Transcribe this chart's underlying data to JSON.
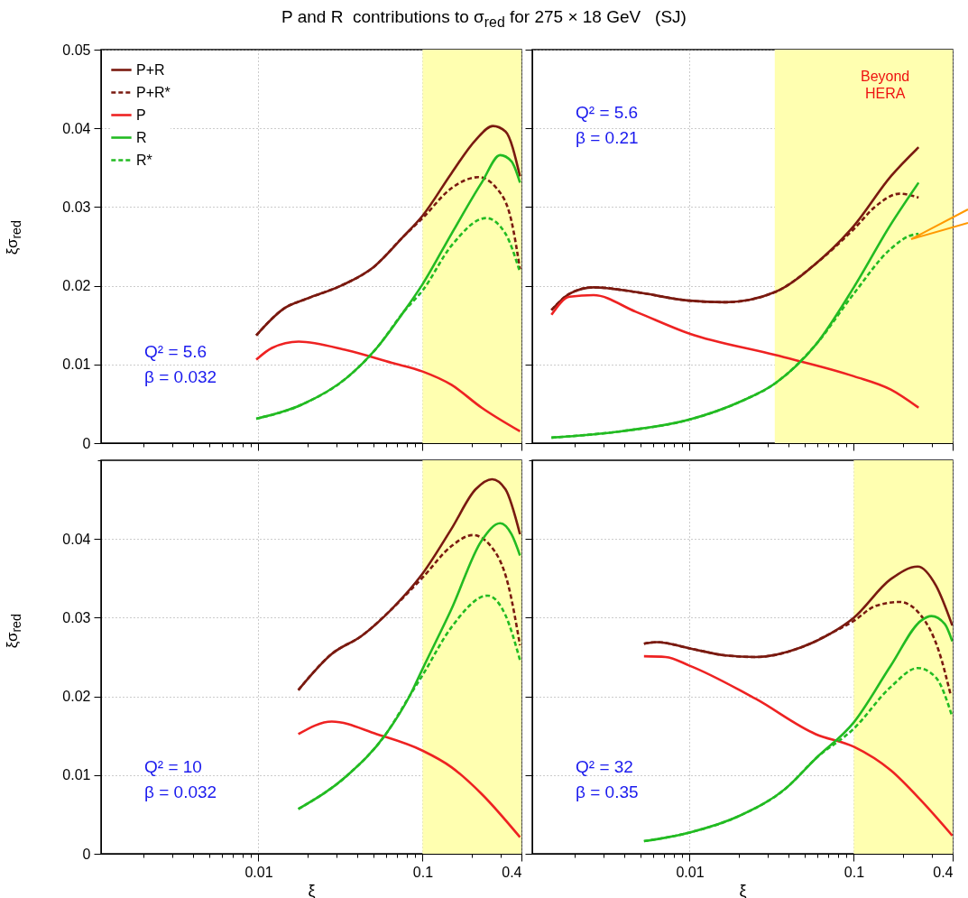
{
  "chart_data": [
    {
      "type": "line",
      "title": "P and R  contributions to σ$_{red}$ for 275 × 18 GeV   (SJ)",
      "ylabel": "ξσ$_{red}$",
      "log": "x",
      "grid": true,
      "legend": "top left",
      "tick_labels": "y",
      "xlim": [
        0.0011,
        0.4
      ],
      "ylim": [
        0,
        0.05
      ],
      "xticks": [
        {
          "value": 0.002,
          "label": null
        },
        {
          "value": 0.003,
          "label": null
        },
        {
          "value": 0.004,
          "label": null
        },
        {
          "value": 0.005,
          "label": null
        },
        {
          "value": 0.006,
          "label": null
        },
        {
          "value": 0.007,
          "label": null
        },
        {
          "value": 0.008,
          "label": null
        },
        {
          "value": 0.009,
          "label": null
        },
        0.01,
        {
          "value": 0.02,
          "label": null
        },
        {
          "value": 0.03,
          "label": null
        },
        {
          "value": 0.04,
          "label": null
        },
        {
          "value": 0.05,
          "label": null
        },
        {
          "value": 0.06,
          "label": null
        },
        {
          "value": 0.07,
          "label": null
        },
        {
          "value": 0.08,
          "label": null
        },
        {
          "value": 0.09,
          "label": null
        },
        0.1,
        {
          "value": 0.2,
          "label": null
        },
        {
          "value": 0.3,
          "label": null
        },
        0.4
      ],
      "yticks": [
        0,
        0.01,
        0.02,
        0.03,
        0.04,
        0.05
      ],
      "bands": [
        {
          "axis": "x",
          "from": 0.1,
          "to": 0.4,
          "color": "#ffffb0"
        }
      ],
      "annotations": [
        "Q² = 5.6",
        "β = 0.032"
      ],
      "series": [
        {
          "name": "P+R",
          "color": "#7a1a10",
          "line_style": "solid",
          "x": [
            0.0097,
            0.0143,
            0.02,
            0.0318,
            0.0505,
            0.0768,
            0.1,
            0.15,
            0.21,
            0.268,
            0.32,
            0.392
          ],
          "values": [
            0.0137,
            0.0171,
            0.0184,
            0.02,
            0.0224,
            0.0263,
            0.0289,
            0.0343,
            0.0385,
            0.0403,
            0.0396,
            0.0339
          ]
        },
        {
          "name": "P+R*",
          "color": "#7a1a10",
          "line_style": "dashed",
          "x": [
            0.0097,
            0.0143,
            0.02,
            0.0318,
            0.0505,
            0.0768,
            0.1,
            0.15,
            0.219,
            0.282,
            0.348,
            0.392
          ],
          "values": [
            0.0137,
            0.0171,
            0.0184,
            0.02,
            0.0224,
            0.0263,
            0.0286,
            0.0324,
            0.0338,
            0.0324,
            0.0282,
            0.0221
          ]
        },
        {
          "name": "P",
          "color": "#ee2222",
          "line_style": "solid",
          "x": [
            0.0097,
            0.0121,
            0.0176,
            0.0345,
            0.0649,
            0.1,
            0.15,
            0.229,
            0.392
          ],
          "values": [
            0.0106,
            0.0121,
            0.0129,
            0.0118,
            0.0102,
            0.0091,
            0.0074,
            0.0045,
            0.0015
          ]
        },
        {
          "name": "R",
          "color": "#22bb22",
          "line_style": "solid",
          "x": [
            0.0097,
            0.0184,
            0.0345,
            0.0526,
            0.0768,
            0.1,
            0.15,
            0.229,
            0.297,
            0.348,
            0.392
          ],
          "values": [
            0.0031,
            0.0049,
            0.0083,
            0.0121,
            0.0167,
            0.0202,
            0.0266,
            0.0331,
            0.0366,
            0.0358,
            0.0331
          ]
        },
        {
          "name": "R*",
          "color": "#22bb22",
          "line_style": "dashed",
          "x": [
            0.0097,
            0.0184,
            0.0345,
            0.0526,
            0.0768,
            0.1,
            0.15,
            0.244,
            0.32,
            0.392
          ],
          "values": [
            0.0031,
            0.0049,
            0.0083,
            0.0121,
            0.0167,
            0.0194,
            0.0251,
            0.0286,
            0.0266,
            0.0217
          ]
        }
      ]
    },
    {
      "type": "line",
      "log": "x",
      "grid": true,
      "tick_labels": false,
      "xlim": [
        0.0011,
        0.4
      ],
      "ylim": [
        0,
        0.05
      ],
      "xticks": [
        {
          "value": 0.002,
          "label": null
        },
        {
          "value": 0.003,
          "label": null
        },
        {
          "value": 0.004,
          "label": null
        },
        {
          "value": 0.005,
          "label": null
        },
        {
          "value": 0.006,
          "label": null
        },
        {
          "value": 0.007,
          "label": null
        },
        {
          "value": 0.008,
          "label": null
        },
        {
          "value": 0.009,
          "label": null
        },
        0.01,
        {
          "value": 0.02,
          "label": null
        },
        {
          "value": 0.03,
          "label": null
        },
        {
          "value": 0.04,
          "label": null
        },
        {
          "value": 0.05,
          "label": null
        },
        {
          "value": 0.06,
          "label": null
        },
        {
          "value": 0.07,
          "label": null
        },
        {
          "value": 0.08,
          "label": null
        },
        {
          "value": 0.09,
          "label": null
        },
        0.1,
        {
          "value": 0.2,
          "label": null
        },
        {
          "value": 0.3,
          "label": null
        },
        0.4
      ],
      "yticks": [
        0,
        0.01,
        0.02,
        0.03,
        0.04,
        0.05
      ],
      "bands": [
        {
          "axis": "x",
          "from": 0.033,
          "to": 0.4,
          "color": "#ffffb0",
          "label": "Beyond HERA"
        }
      ],
      "annotations": [
        "Q² = 5.6",
        "β = 0.21"
      ],
      "series": [
        {
          "color": "#7a1a10",
          "line_style": "solid",
          "x": [
            0.00144,
            0.00186,
            0.0026,
            0.00469,
            0.01,
            0.0166,
            0.0332,
            0.0586,
            0.1,
            0.168,
            0.248
          ],
          "values": [
            0.0169,
            0.019,
            0.0198,
            0.0192,
            0.0181,
            0.0179,
            0.0192,
            0.0228,
            0.0276,
            0.0339,
            0.0376
          ]
        },
        {
          "color": "#7a1a10",
          "line_style": "dashed",
          "x": [
            0.00144,
            0.00186,
            0.0026,
            0.00469,
            0.01,
            0.0166,
            0.0332,
            0.0586,
            0.1,
            0.136,
            0.19,
            0.248
          ],
          "values": [
            0.0169,
            0.019,
            0.0198,
            0.0192,
            0.0181,
            0.0179,
            0.0192,
            0.0228,
            0.0272,
            0.0301,
            0.0317,
            0.0312
          ]
        },
        {
          "color": "#ee2222",
          "line_style": "solid",
          "x": [
            0.00144,
            0.00186,
            0.0026,
            0.00469,
            0.01,
            0.0332,
            0.1,
            0.168,
            0.248
          ],
          "values": [
            0.0163,
            0.0186,
            0.0188,
            0.0167,
            0.0139,
            0.0112,
            0.0085,
            0.0068,
            0.0045
          ]
        },
        {
          "color": "#22bb22",
          "line_style": "solid",
          "x": [
            0.00144,
            0.0038,
            0.01,
            0.0205,
            0.0332,
            0.0586,
            0.1,
            0.168,
            0.248
          ],
          "values": [
            0.0007,
            0.0015,
            0.003,
            0.0053,
            0.0076,
            0.0125,
            0.0198,
            0.0278,
            0.0331
          ]
        },
        {
          "color": "#22bb22",
          "line_style": "dashed",
          "x": [
            0.00144,
            0.0038,
            0.01,
            0.0205,
            0.0332,
            0.0586,
            0.1,
            0.168,
            0.216,
            0.248
          ],
          "values": [
            0.0007,
            0.0015,
            0.003,
            0.0053,
            0.0076,
            0.0125,
            0.019,
            0.0247,
            0.0263,
            0.0266
          ]
        }
      ]
    },
    {
      "type": "line",
      "ylabel": "ξσ$_{red}$",
      "xlabel": "ξ",
      "log": "x",
      "grid": true,
      "xlim": [
        0.0011,
        0.4
      ],
      "ylim": [
        0,
        0.05
      ],
      "xticks": [
        {
          "value": 0.002,
          "label": null
        },
        {
          "value": 0.003,
          "label": null
        },
        {
          "value": 0.004,
          "label": null
        },
        {
          "value": 0.005,
          "label": null
        },
        {
          "value": 0.006,
          "label": null
        },
        {
          "value": 0.007,
          "label": null
        },
        {
          "value": 0.008,
          "label": null
        },
        {
          "value": 0.009,
          "label": null
        },
        0.01,
        {
          "value": 0.02,
          "label": null
        },
        {
          "value": 0.03,
          "label": null
        },
        {
          "value": 0.04,
          "label": null
        },
        {
          "value": 0.05,
          "label": null
        },
        {
          "value": 0.06,
          "label": null
        },
        {
          "value": 0.07,
          "label": null
        },
        {
          "value": 0.08,
          "label": null
        },
        {
          "value": 0.09,
          "label": null
        },
        0.1,
        {
          "value": 0.2,
          "label": null
        },
        {
          "value": 0.3,
          "label": null
        },
        0.4
      ],
      "yticks": [
        0,
        0.01,
        0.02,
        0.03,
        0.04,
        {
          "value": 0.05,
          "label": null
        }
      ],
      "bands": [
        {
          "axis": "x",
          "from": 0.1,
          "to": 0.4,
          "color": "#ffffb0"
        }
      ],
      "annotations": [
        "Q² = 10",
        "β = 0.032"
      ],
      "series": [
        {
          "color": "#7a1a10",
          "line_style": "solid",
          "x": [
            0.0175,
            0.028,
            0.0426,
            0.0649,
            0.1,
            0.15,
            0.21,
            0.265,
            0.32,
            0.392
          ],
          "values": [
            0.0208,
            0.0254,
            0.0277,
            0.0311,
            0.0356,
            0.0413,
            0.0463,
            0.0476,
            0.0463,
            0.0406
          ]
        },
        {
          "color": "#7a1a10",
          "line_style": "dashed",
          "x": [
            0.0175,
            0.028,
            0.0426,
            0.0649,
            0.1,
            0.15,
            0.202,
            0.26,
            0.333,
            0.392
          ],
          "values": [
            0.0208,
            0.0254,
            0.0277,
            0.0311,
            0.0351,
            0.0391,
            0.0405,
            0.0391,
            0.0341,
            0.0265
          ]
        },
        {
          "color": "#ee2222",
          "line_style": "solid",
          "x": [
            0.0175,
            0.028,
            0.0526,
            0.1,
            0.15,
            0.229,
            0.392
          ],
          "values": [
            0.0152,
            0.0168,
            0.0152,
            0.0131,
            0.011,
            0.0076,
            0.0021
          ]
        },
        {
          "color": "#22bb22",
          "line_style": "solid",
          "x": [
            0.0175,
            0.0345,
            0.0597,
            0.0836,
            0.1,
            0.15,
            0.229,
            0.297,
            0.348,
            0.392
          ],
          "values": [
            0.0057,
            0.0099,
            0.0152,
            0.0201,
            0.0235,
            0.0311,
            0.0398,
            0.042,
            0.0406,
            0.0379
          ]
        },
        {
          "color": "#22bb22",
          "line_style": "dashed",
          "x": [
            0.0175,
            0.0345,
            0.0597,
            0.0836,
            0.1,
            0.15,
            0.249,
            0.32,
            0.392
          ],
          "values": [
            0.0057,
            0.0099,
            0.0152,
            0.0201,
            0.0227,
            0.0288,
            0.0328,
            0.0303,
            0.0246
          ]
        }
      ]
    },
    {
      "type": "line",
      "xlabel": "ξ",
      "log": "x",
      "grid": true,
      "tick_labels": "x",
      "xlim": [
        0.0011,
        0.4
      ],
      "ylim": [
        0,
        0.05
      ],
      "xticks": [
        {
          "value": 0.002,
          "label": null
        },
        {
          "value": 0.003,
          "label": null
        },
        {
          "value": 0.004,
          "label": null
        },
        {
          "value": 0.005,
          "label": null
        },
        {
          "value": 0.006,
          "label": null
        },
        {
          "value": 0.007,
          "label": null
        },
        {
          "value": 0.008,
          "label": null
        },
        {
          "value": 0.009,
          "label": null
        },
        0.01,
        {
          "value": 0.02,
          "label": null
        },
        {
          "value": 0.03,
          "label": null
        },
        {
          "value": 0.04,
          "label": null
        },
        {
          "value": 0.05,
          "label": null
        },
        {
          "value": 0.06,
          "label": null
        },
        {
          "value": 0.07,
          "label": null
        },
        {
          "value": 0.08,
          "label": null
        },
        {
          "value": 0.09,
          "label": null
        },
        0.1,
        {
          "value": 0.2,
          "label": null
        },
        {
          "value": 0.3,
          "label": null
        },
        0.4
      ],
      "yticks": [
        0,
        0.01,
        0.02,
        0.03,
        0.04,
        {
          "value": 0.05,
          "label": null
        }
      ],
      "bands": [
        {
          "axis": "x",
          "from": 0.1,
          "to": 0.4,
          "color": "#ffffb0"
        }
      ],
      "annotations": [
        "Q² = 32",
        "β = 0.35"
      ],
      "series": [
        {
          "color": "#7a1a10",
          "line_style": "solid",
          "x": [
            0.00527,
            0.0063,
            0.01,
            0.0166,
            0.0252,
            0.0474,
            0.0723,
            0.1,
            0.168,
            0.245,
            0.316,
            0.398
          ],
          "values": [
            0.0267,
            0.0269,
            0.0261,
            0.0252,
            0.025,
            0.0262,
            0.028,
            0.03,
            0.0349,
            0.0365,
            0.0341,
            0.029
          ]
        },
        {
          "color": "#7a1a10",
          "line_style": "dashed",
          "x": [
            0.00527,
            0.0063,
            0.01,
            0.0166,
            0.0252,
            0.0474,
            0.0723,
            0.1,
            0.136,
            0.19,
            0.256,
            0.329,
            0.39
          ],
          "values": [
            0.0267,
            0.0269,
            0.0261,
            0.0252,
            0.025,
            0.0262,
            0.028,
            0.0296,
            0.0315,
            0.032,
            0.0303,
            0.0258,
            0.0201
          ]
        },
        {
          "color": "#ee2222",
          "line_style": "solid",
          "x": [
            0.00527,
            0.00714,
            0.01,
            0.0252,
            0.0586,
            0.1,
            0.168,
            0.256,
            0.398
          ],
          "values": [
            0.0251,
            0.025,
            0.0239,
            0.0197,
            0.0152,
            0.0136,
            0.0106,
            0.0068,
            0.0023
          ]
        },
        {
          "color": "#22bb22",
          "line_style": "solid",
          "x": [
            0.00527,
            0.01,
            0.0205,
            0.0385,
            0.0586,
            0.1,
            0.168,
            0.256,
            0.297,
            0.358,
            0.398
          ],
          "values": [
            0.0016,
            0.0027,
            0.0049,
            0.0083,
            0.0121,
            0.0167,
            0.0239,
            0.0296,
            0.0302,
            0.0292,
            0.027
          ]
        },
        {
          "color": "#22bb22",
          "line_style": "dashed",
          "x": [
            0.00527,
            0.01,
            0.0205,
            0.0385,
            0.0586,
            0.1,
            0.168,
            0.245,
            0.316,
            0.398
          ],
          "values": [
            0.0016,
            0.0027,
            0.0049,
            0.0083,
            0.0121,
            0.0159,
            0.0212,
            0.0236,
            0.0224,
            0.0174
          ]
        }
      ]
    }
  ]
}
